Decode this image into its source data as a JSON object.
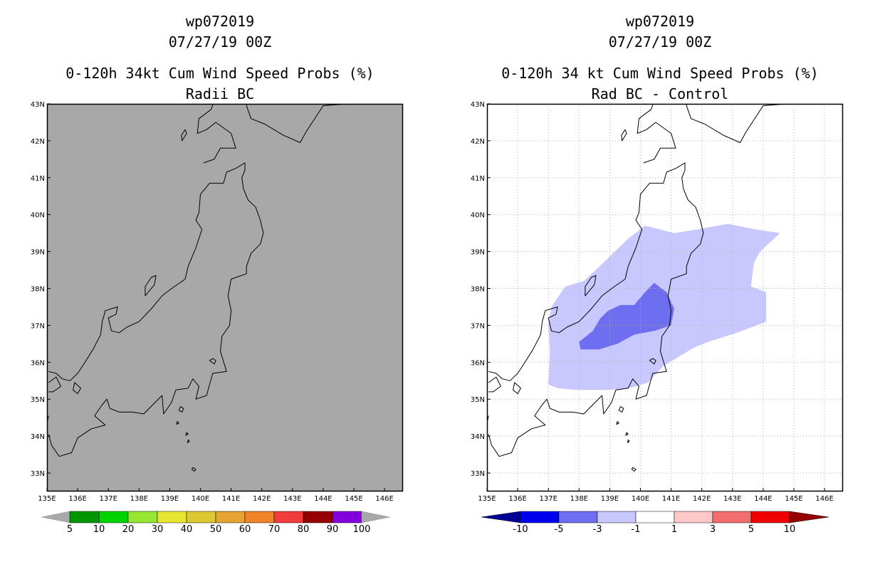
{
  "left": {
    "title_line1": "wp072019",
    "title_line2": "07/27/19 00Z",
    "title_line3": "0-120h 34kt Cum Wind Speed Probs (%)",
    "title_line4": "Radii BC",
    "background_color": "#a8a8a8",
    "colorbar": {
      "colors": [
        "#009600",
        "#00d200",
        "#96e632",
        "#e6e632",
        "#dcc832",
        "#e6a532",
        "#f08228",
        "#f03c3c",
        "#960000",
        "#8200dc"
      ],
      "end_colors": [
        "#a8a8a8",
        "#a8a8a8"
      ],
      "labels": [
        "5",
        "10",
        "20",
        "30",
        "40",
        "50",
        "60",
        "70",
        "80",
        "90",
        "100"
      ]
    }
  },
  "right": {
    "title_line1": "wp072019",
    "title_line2": "07/27/19 00Z",
    "title_line3": "0-120h 34 kt Cum Wind Speed Probs (%)",
    "title_line4": "Rad BC - Control",
    "background_color": "#ffffff",
    "shading": [
      {
        "range": "-3 to -1",
        "color": "#c8c8ff"
      },
      {
        "range": "-5 to -3",
        "color": "#6e6ef0"
      }
    ],
    "colorbar": {
      "colors": [
        "#0000f0",
        "#6e6ef0",
        "#c8c8ff",
        "#ffffff",
        "#ffc8c8",
        "#f06e6e",
        "#f00000"
      ],
      "end_colors": [
        "#000096",
        "#960000"
      ],
      "labels": [
        "-10",
        "-5",
        "-3",
        "-1",
        "1",
        "3",
        "5",
        "10"
      ]
    }
  },
  "axes": {
    "lon_labels": [
      "135E",
      "136E",
      "137E",
      "138E",
      "139E",
      "140E",
      "141E",
      "142E",
      "143E",
      "144E",
      "145E",
      "146E"
    ],
    "lat_labels": [
      "43N",
      "42N",
      "41N",
      "40N",
      "39N",
      "38N",
      "37N",
      "36N",
      "35N",
      "34N",
      "33N"
    ],
    "lon_range": [
      135,
      146.6
    ],
    "lat_range": [
      32.5,
      43
    ]
  }
}
